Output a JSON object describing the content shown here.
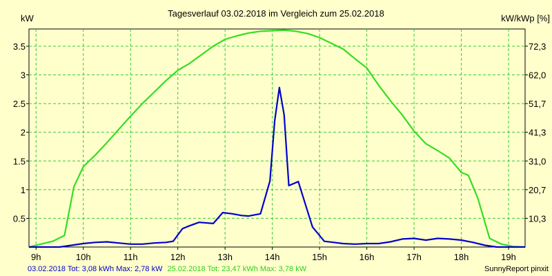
{
  "chart_data": {
    "type": "line",
    "title": "Tagesverlauf 03.02.2018 im Vergleich zum 25.02.2018",
    "ylabel_left": "kW",
    "ylabel_right": "kW/kWp [%]",
    "xlim": [
      8.85,
      19.35
    ],
    "ylim": [
      0,
      3.8
    ],
    "x_ticks": [
      {
        "value": 9,
        "label": "9h"
      },
      {
        "value": 10,
        "label": "10h"
      },
      {
        "value": 11,
        "label": "11h"
      },
      {
        "value": 12,
        "label": "12h"
      },
      {
        "value": 13,
        "label": "13h"
      },
      {
        "value": 14,
        "label": "14h"
      },
      {
        "value": 15,
        "label": "15h"
      },
      {
        "value": 16,
        "label": "16h"
      },
      {
        "value": 17,
        "label": "17h"
      },
      {
        "value": 18,
        "label": "18h"
      },
      {
        "value": 19,
        "label": "19h"
      }
    ],
    "y_ticks_left": [
      {
        "value": 0.5,
        "label": "0.5"
      },
      {
        "value": 1.0,
        "label": "1"
      },
      {
        "value": 1.5,
        "label": "1.5"
      },
      {
        "value": 2.0,
        "label": "2"
      },
      {
        "value": 2.5,
        "label": "2.5"
      },
      {
        "value": 3.0,
        "label": "3"
      },
      {
        "value": 3.5,
        "label": "3.5"
      }
    ],
    "y_ticks_right": [
      {
        "value": 0.5,
        "label": "10,3"
      },
      {
        "value": 1.0,
        "label": "20,7"
      },
      {
        "value": 1.5,
        "label": "31,0"
      },
      {
        "value": 2.0,
        "label": "41,3"
      },
      {
        "value": 2.5,
        "label": "51,7"
      },
      {
        "value": 3.0,
        "label": "62,0"
      },
      {
        "value": 3.5,
        "label": "72,3"
      }
    ],
    "grid": true,
    "series": [
      {
        "name": "03.02.2018",
        "color": "#0000cc",
        "points": [
          [
            8.85,
            0.0
          ],
          [
            9.5,
            0.0
          ],
          [
            9.75,
            0.03
          ],
          [
            10.0,
            0.06
          ],
          [
            10.25,
            0.08
          ],
          [
            10.5,
            0.09
          ],
          [
            10.75,
            0.07
          ],
          [
            11.0,
            0.05
          ],
          [
            11.25,
            0.05
          ],
          [
            11.5,
            0.07
          ],
          [
            11.75,
            0.08
          ],
          [
            11.9,
            0.1
          ],
          [
            12.1,
            0.32
          ],
          [
            12.25,
            0.37
          ],
          [
            12.45,
            0.43
          ],
          [
            12.75,
            0.41
          ],
          [
            12.95,
            0.6
          ],
          [
            13.15,
            0.58
          ],
          [
            13.35,
            0.55
          ],
          [
            13.5,
            0.54
          ],
          [
            13.75,
            0.58
          ],
          [
            13.95,
            1.15
          ],
          [
            14.05,
            2.2
          ],
          [
            14.15,
            2.78
          ],
          [
            14.25,
            2.3
          ],
          [
            14.35,
            1.07
          ],
          [
            14.55,
            1.14
          ],
          [
            14.85,
            0.35
          ],
          [
            15.1,
            0.1
          ],
          [
            15.3,
            0.08
          ],
          [
            15.5,
            0.06
          ],
          [
            15.75,
            0.05
          ],
          [
            16.0,
            0.06
          ],
          [
            16.25,
            0.06
          ],
          [
            16.5,
            0.09
          ],
          [
            16.75,
            0.14
          ],
          [
            17.0,
            0.15
          ],
          [
            17.25,
            0.12
          ],
          [
            17.5,
            0.15
          ],
          [
            17.75,
            0.14
          ],
          [
            18.0,
            0.12
          ],
          [
            18.25,
            0.08
          ],
          [
            18.5,
            0.03
          ],
          [
            18.75,
            0.0
          ],
          [
            19.35,
            0.0
          ]
        ]
      },
      {
        "name": "25.02.2018",
        "color": "#33dd22",
        "points": [
          [
            8.85,
            0.0
          ],
          [
            9.1,
            0.05
          ],
          [
            9.35,
            0.1
          ],
          [
            9.6,
            0.2
          ],
          [
            9.8,
            1.05
          ],
          [
            10.0,
            1.4
          ],
          [
            10.25,
            1.6
          ],
          [
            10.5,
            1.82
          ],
          [
            10.75,
            2.05
          ],
          [
            11.0,
            2.28
          ],
          [
            11.25,
            2.5
          ],
          [
            11.5,
            2.7
          ],
          [
            11.75,
            2.9
          ],
          [
            12.0,
            3.08
          ],
          [
            12.25,
            3.2
          ],
          [
            12.5,
            3.35
          ],
          [
            12.75,
            3.5
          ],
          [
            13.0,
            3.62
          ],
          [
            13.25,
            3.68
          ],
          [
            13.5,
            3.73
          ],
          [
            13.75,
            3.76
          ],
          [
            14.0,
            3.77
          ],
          [
            14.25,
            3.78
          ],
          [
            14.5,
            3.76
          ],
          [
            14.75,
            3.72
          ],
          [
            15.0,
            3.65
          ],
          [
            15.25,
            3.55
          ],
          [
            15.5,
            3.45
          ],
          [
            15.75,
            3.28
          ],
          [
            16.0,
            3.12
          ],
          [
            16.25,
            2.82
          ],
          [
            16.5,
            2.55
          ],
          [
            16.75,
            2.3
          ],
          [
            17.0,
            2.02
          ],
          [
            17.25,
            1.8
          ],
          [
            17.5,
            1.68
          ],
          [
            17.75,
            1.55
          ],
          [
            18.0,
            1.3
          ],
          [
            18.15,
            1.25
          ],
          [
            18.35,
            0.85
          ],
          [
            18.6,
            0.15
          ],
          [
            18.85,
            0.05
          ],
          [
            19.1,
            0.01
          ],
          [
            19.35,
            0.0
          ]
        ]
      }
    ],
    "footer": {
      "series1_text": "03.02.2018 Tot: 3,08 kWh Max: 2,78 kW",
      "series2_text": "25.02.2018 Tot: 23,47 kWh Max: 3,78 kW",
      "credit": "SunnyReport pinxit"
    }
  },
  "colors": {
    "background": "#ffffcc",
    "plot_background": "#ffffcc",
    "grid": "#33cc33",
    "axis": "#000000"
  }
}
